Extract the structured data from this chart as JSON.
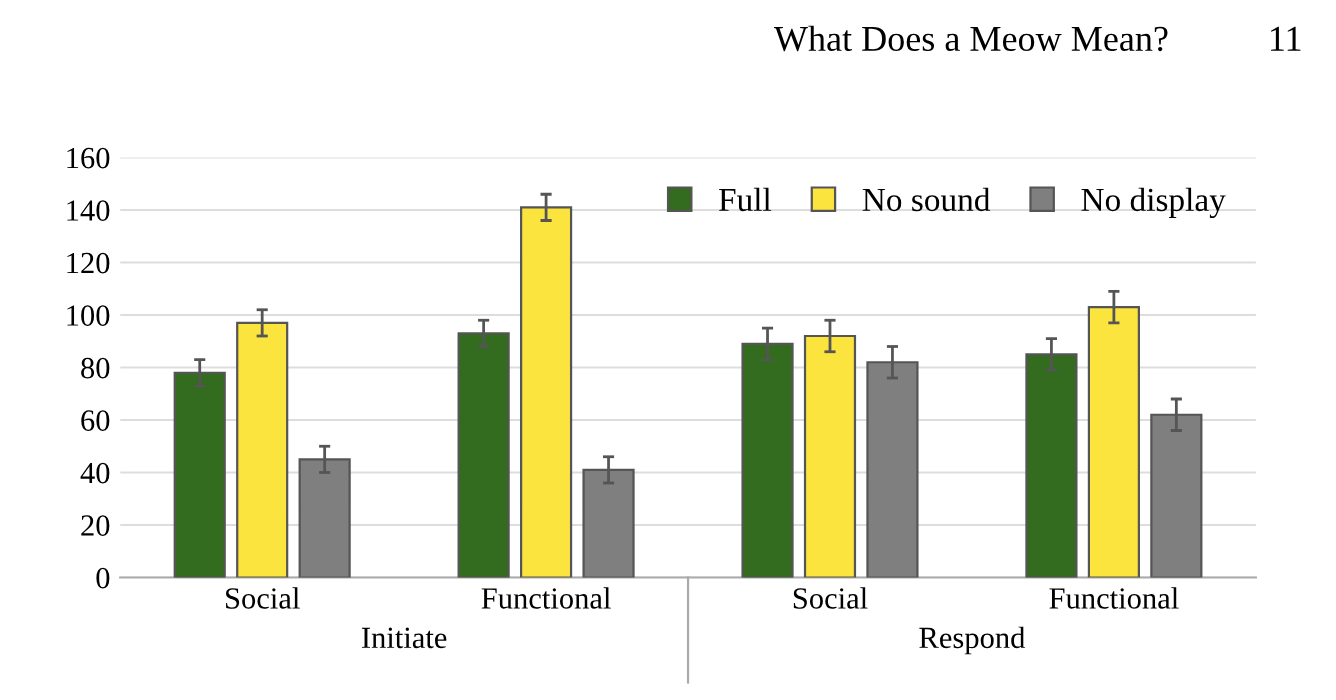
{
  "chart_data": {
    "type": "bar",
    "categories": [
      "Social",
      "Functional",
      "Social",
      "Functional"
    ],
    "series": [
      {
        "name": "Full",
        "color": "#336b1f",
        "values": [
          78,
          93,
          89,
          85
        ],
        "errors": [
          5,
          5,
          6,
          6
        ]
      },
      {
        "name": "No sound",
        "color": "#fce43e",
        "values": [
          97,
          141,
          92,
          103
        ],
        "errors": [
          5,
          5,
          6,
          6
        ]
      },
      {
        "name": "No display",
        "color": "#7f7f7f",
        "values": [
          45,
          41,
          82,
          62
        ],
        "errors": [
          5,
          5,
          6,
          6
        ]
      }
    ],
    "ylim": [
      0,
      160
    ],
    "yticks": [
      0,
      20,
      40,
      60,
      80,
      100,
      120,
      140,
      160
    ],
    "grid": "y",
    "legend": "top right",
    "annotations": [
      "Initiate",
      "Respond",
      "What Does a Meow Mean?",
      "11"
    ]
  }
}
